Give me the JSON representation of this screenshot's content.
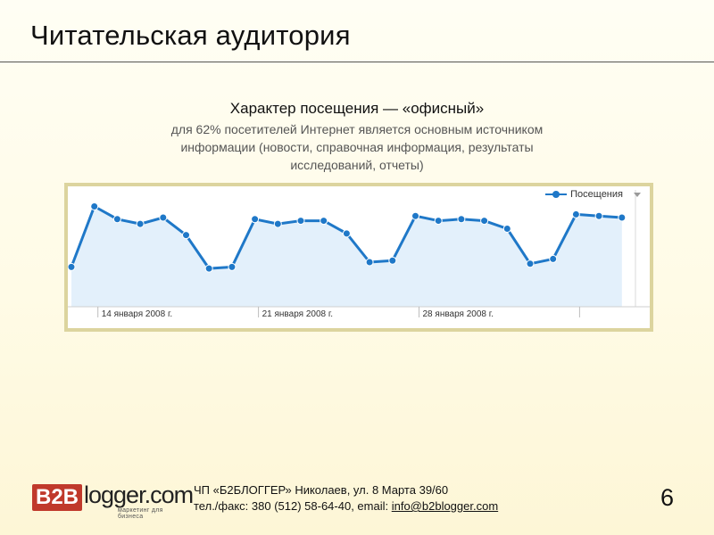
{
  "slide": {
    "title": "Читательская аудитория",
    "heading": "Характер посещения — «офисный»",
    "description": "для 62% посетителей Интернет является основным источником информации (новости, справочная информация, результаты исследований, отчеты)",
    "page_number": "6"
  },
  "chart_data": {
    "type": "line",
    "legend": [
      "Посещения"
    ],
    "legend_placement": "top-right",
    "series": [
      {
        "name": "Посещения",
        "color": "#1f78c8",
        "values": [
          55,
          93,
          85,
          82,
          86,
          75,
          54,
          55,
          85,
          82,
          84,
          84,
          76,
          58,
          59,
          87,
          84,
          85,
          84,
          79,
          57,
          60,
          88,
          87,
          86
        ]
      }
    ],
    "x_tick_labels": [
      "14 января 2008 г.",
      "21 января 2008 г.",
      "28 января 2008 г."
    ],
    "fill_color": "#e3f0fb",
    "grid": false
  },
  "footer": {
    "logo_box": "B2B",
    "logo_word": "logger.com",
    "logo_tagline": "маркетинг для бизнеса",
    "company_line": "ЧП «Б2БЛОГГЕР» Николаев, ул. 8 Марта 39/60",
    "contact_prefix": "тел./факс: 380 (512) 58-64-40, email: ",
    "email": "info@b2blogger.com"
  }
}
